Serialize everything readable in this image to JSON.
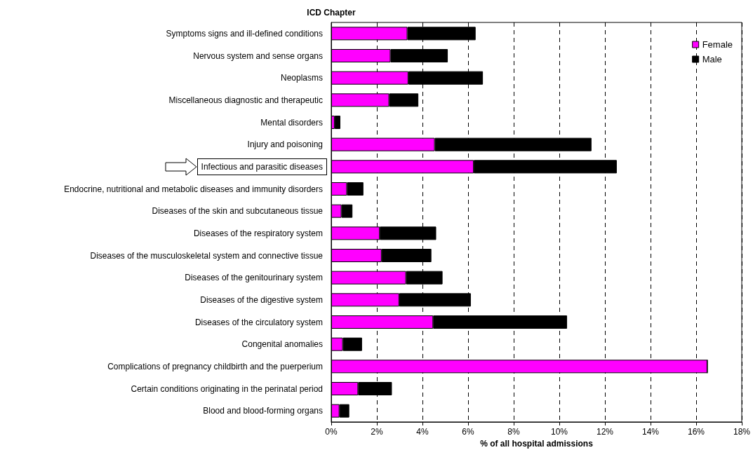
{
  "chart_data": {
    "type": "bar",
    "orientation": "horizontal",
    "stacked": true,
    "ylabel": "ICD Chapter",
    "xlabel": "% of all hospital admissions",
    "categories": [
      "Symptoms signs and ill-defined conditions",
      "Nervous system and sense organs",
      "Neoplasms",
      "Miscellaneous diagnostic and therapeutic",
      "Mental disorders",
      "Injury and poisoning",
      "Infectious and parasitic diseases",
      "Endocrine, nutritional and metabolic diseases and immunity disorders",
      "Diseases of the skin and subcutaneous tissue",
      "Diseases of the respiratory system",
      "Diseases of the musculoskeletal system and connective tissue",
      "Diseases of the genitourinary system",
      "Diseases of the digestive system",
      "Diseases of the circulatory system",
      "Congenital anomalies",
      "Complications of pregnancy childbirth and the puerperium",
      "Certain conditions originating in the perinatal period",
      "Blood and blood-forming organs"
    ],
    "series": [
      {
        "name": "Female",
        "color": "#ff00ff",
        "values": [
          3.34,
          2.6,
          3.38,
          2.54,
          0.15,
          4.54,
          6.25,
          0.69,
          0.45,
          2.13,
          2.21,
          3.28,
          2.98,
          4.47,
          0.51,
          16.49,
          1.18,
          0.36
        ]
      },
      {
        "name": "Male",
        "color": "#000000",
        "values": [
          2.99,
          2.51,
          3.27,
          1.28,
          0.25,
          6.87,
          6.27,
          0.72,
          0.48,
          2.47,
          2.18,
          1.6,
          3.14,
          5.87,
          0.84,
          0,
          1.48,
          0.43
        ]
      }
    ],
    "xlim": [
      0,
      18
    ],
    "xticks": [
      {
        "value": 0,
        "label": "0%"
      },
      {
        "value": 2,
        "label": "2%"
      },
      {
        "value": 4,
        "label": "4%"
      },
      {
        "value": 6,
        "label": "6%"
      },
      {
        "value": 8,
        "label": "8%"
      },
      {
        "value": 10,
        "label": "10%"
      },
      {
        "value": 12,
        "label": "12%"
      },
      {
        "value": 14,
        "label": "14%"
      },
      {
        "value": 16,
        "label": "16%"
      },
      {
        "value": 18,
        "label": "18%"
      }
    ],
    "grid": "x",
    "legend": "top right"
  }
}
